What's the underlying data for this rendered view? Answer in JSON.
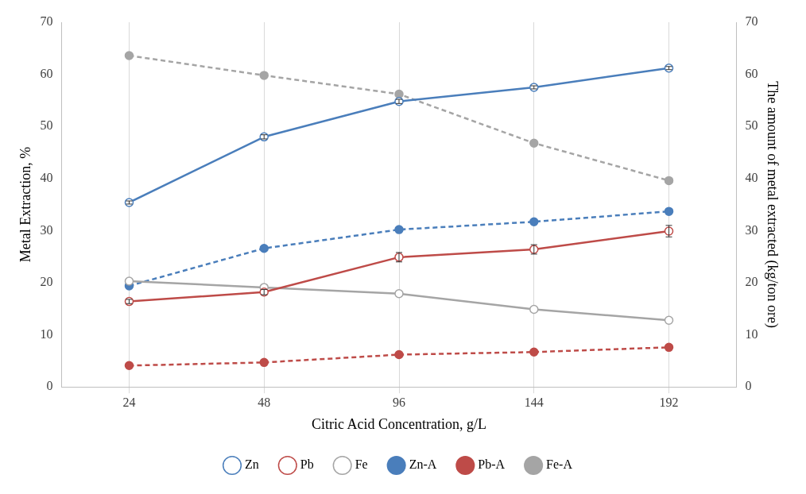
{
  "chart_data": {
    "type": "line",
    "xlabel": "Citric Acid Concentration, g/L",
    "ylabel": "Metal Extraction, %",
    "y2label": "The amount of metal extracted (kg/ton ore)",
    "categories": [
      "24",
      "48",
      "96",
      "144",
      "192"
    ],
    "series": [
      {
        "name": "Zn",
        "color": "#4a7ebb",
        "values": [
          35.4,
          48.0,
          54.8,
          57.5,
          61.2
        ],
        "errors": [
          0.3,
          0.4,
          0.4,
          0.3,
          0.3
        ],
        "line_style": "solid"
      },
      {
        "name": "Pb",
        "color": "#be4b48",
        "values": [
          16.4,
          18.2,
          24.9,
          26.4,
          29.9
        ],
        "errors": [
          0.4,
          0.5,
          0.9,
          0.9,
          1.1
        ],
        "line_style": "solid"
      },
      {
        "name": "Fe",
        "color": "#a5a5a5",
        "values": [
          20.3,
          19.1,
          17.9,
          14.9,
          12.8
        ],
        "line_style": "solid"
      },
      {
        "name": "Zn-A",
        "color": "#4a7ebb",
        "values": [
          19.4,
          26.6,
          30.2,
          31.7,
          33.7
        ],
        "axis": "y2",
        "line_style": "dashed"
      },
      {
        "name": "Pb-A",
        "color": "#be4b48",
        "values": [
          4.1,
          4.7,
          6.2,
          6.7,
          7.6
        ],
        "axis": "y2",
        "line_style": "dashed"
      },
      {
        "name": "Fe-A",
        "color": "#a5a5a5",
        "values": [
          63.6,
          59.8,
          56.2,
          46.8,
          39.6
        ],
        "axis": "y2",
        "line_style": "dashed"
      }
    ],
    "ylim": [
      0,
      70
    ],
    "yticks": [
      0,
      10,
      20,
      30,
      40,
      50,
      60,
      70
    ],
    "y2lim": [
      0,
      70
    ],
    "y2ticks": [
      0,
      10,
      20,
      30,
      40,
      50,
      60,
      70
    ],
    "grid": "x",
    "legend": "bottom",
    "marker": "circle"
  }
}
